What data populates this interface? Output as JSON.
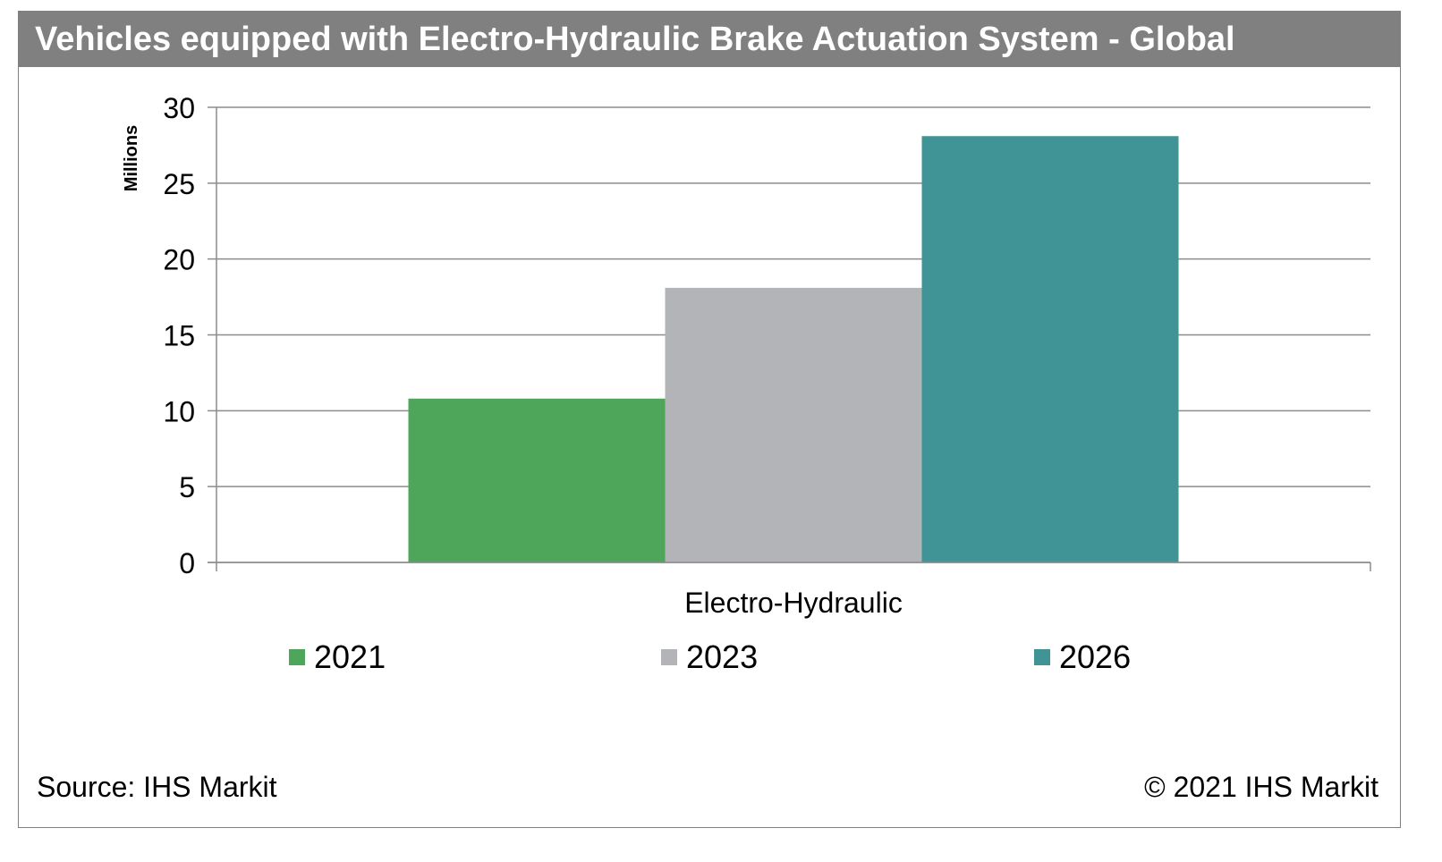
{
  "header": {
    "title": "Vehicles equipped with Electro-Hydraulic Brake Actuation System - Global"
  },
  "footer": {
    "source": "Source: IHS Markit",
    "copyright": "© 2021 IHS Markit"
  },
  "chart_data": {
    "type": "bar",
    "title": "Vehicles equipped with Electro-Hydraulic Brake Actuation System - Global",
    "categories": [
      "Electro-Hydraulic"
    ],
    "xlabel": "",
    "ylabel": "Millions",
    "ylim": [
      0,
      30
    ],
    "yticks": [
      0,
      5,
      10,
      15,
      20,
      25,
      30
    ],
    "grid": true,
    "legend_position": "bottom",
    "series": [
      {
        "name": "2021",
        "values": [
          10.8
        ],
        "color": "#4ea65a"
      },
      {
        "name": "2023",
        "values": [
          18.1
        ],
        "color": "#b2b4b7"
      },
      {
        "name": "2026",
        "values": [
          28.1
        ],
        "color": "#409496"
      }
    ]
  }
}
